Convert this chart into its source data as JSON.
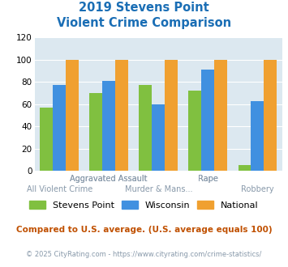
{
  "title_line1": "2019 Stevens Point",
  "title_line2": "Violent Crime Comparison",
  "stevens_point": [
    57,
    70,
    77,
    72,
    5
  ],
  "wisconsin": [
    77,
    81,
    60,
    91,
    63
  ],
  "national": [
    100,
    100,
    100,
    100,
    100
  ],
  "bar_colors": {
    "stevens_point": "#80c040",
    "wisconsin": "#4090e0",
    "national": "#f0a030"
  },
  "ylim": [
    0,
    120
  ],
  "yticks": [
    0,
    20,
    40,
    60,
    80,
    100,
    120
  ],
  "legend_labels": [
    "Stevens Point",
    "Wisconsin",
    "National"
  ],
  "xlabel_row1": [
    "",
    "Aggravated Assault",
    "",
    "Rape",
    ""
  ],
  "xlabel_row2": [
    "All Violent Crime",
    "",
    "Murder & Mans...",
    "",
    "Robbery"
  ],
  "footnote1": "Compared to U.S. average. (U.S. average equals 100)",
  "footnote2": "© 2025 CityRating.com - https://www.cityrating.com/crime-statistics/",
  "title_color": "#1a6eb5",
  "footnote1_color": "#c05000",
  "footnote2_color": "#8899aa",
  "plot_bg_color": "#dce8f0",
  "xtick_color": "#8899aa",
  "ytick_color": "#666666"
}
